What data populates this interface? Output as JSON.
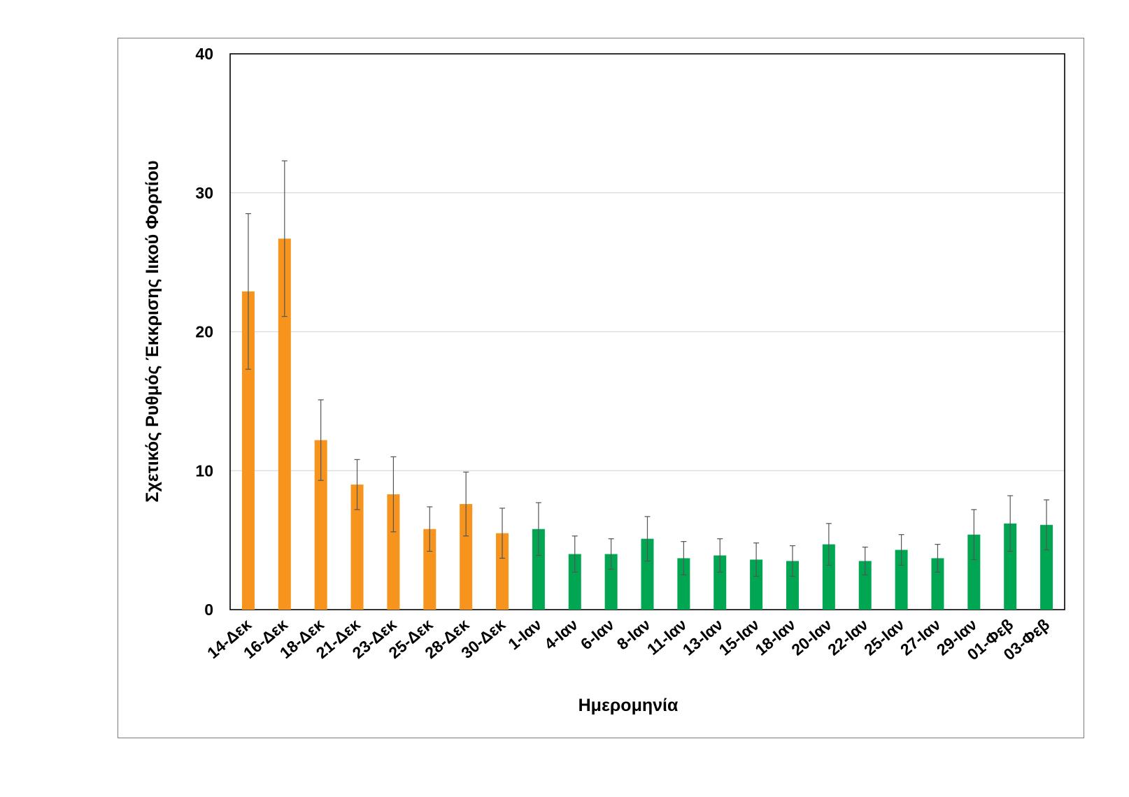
{
  "chart_data": {
    "type": "bar",
    "title": "",
    "xlabel": "Ημερομηνία",
    "ylabel": "Σχετικός Ρυθμός Έκκρισης Ιικού Φορτίου",
    "ylim": [
      0,
      40
    ],
    "yticks": [
      "0",
      "10",
      "20",
      "30",
      "40"
    ],
    "grid": true,
    "categories": [
      "14-Δεκ",
      "16-Δεκ",
      "18-Δεκ",
      "21-Δεκ",
      "23-Δεκ",
      "25-Δεκ",
      "28-Δεκ",
      "30-Δεκ",
      "1-Ιαν",
      "4-Ιαν",
      "6-Ιαν",
      "8-Ιαν",
      "11-Ιαν",
      "13-Ιαν",
      "15-Ιαν",
      "18-Ιαν",
      "20-Ιαν",
      "22-Ιαν",
      "25-Ιαν",
      "27-Ιαν",
      "29-Ιαν",
      "01-Φεβ",
      "03-Φεβ"
    ],
    "values": [
      22.9,
      26.7,
      12.2,
      9.0,
      8.3,
      5.8,
      7.6,
      5.5,
      5.8,
      4.0,
      4.0,
      5.1,
      3.7,
      3.9,
      3.6,
      3.5,
      4.7,
      3.5,
      4.3,
      3.7,
      5.4,
      6.2,
      6.1
    ],
    "error": [
      5.6,
      5.6,
      2.9,
      1.8,
      2.7,
      1.6,
      2.3,
      1.8,
      1.9,
      1.3,
      1.1,
      1.6,
      1.2,
      1.2,
      1.2,
      1.1,
      1.5,
      1.0,
      1.1,
      1.0,
      1.8,
      2.0,
      1.8
    ],
    "bar_colors": [
      "#F7941D",
      "#F7941D",
      "#F7941D",
      "#F7941D",
      "#F7941D",
      "#F7941D",
      "#F7941D",
      "#F7941D",
      "#00A651",
      "#00A651",
      "#00A651",
      "#00A651",
      "#00A651",
      "#00A651",
      "#00A651",
      "#00A651",
      "#00A651",
      "#00A651",
      "#00A651",
      "#00A651",
      "#00A651",
      "#00A651",
      "#00A651"
    ],
    "colors": {
      "december": "#F7941D",
      "january_february": "#00A651",
      "gridline": "#d9d9d9",
      "error_bar": "#555555"
    }
  }
}
